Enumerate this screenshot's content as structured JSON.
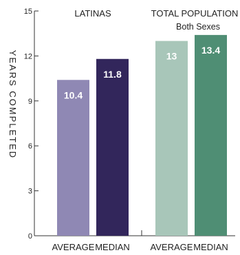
{
  "chart_data": {
    "type": "bar",
    "ylabel": "YEARS COMPLETED",
    "ylim": [
      0,
      15
    ],
    "yticks": [
      0,
      3,
      6,
      9,
      12,
      15
    ],
    "grid": false,
    "groups": [
      {
        "label": "LATINAS",
        "sublabel": "",
        "bars": [
          {
            "category": "AVERAGE",
            "value": 10.4,
            "value_label": "10.4",
            "color": "#8f88b4"
          },
          {
            "category": "MEDIAN",
            "value": 11.8,
            "value_label": "11.8",
            "color": "#32265b"
          }
        ]
      },
      {
        "label": "TOTAL POPULATION",
        "sublabel": "Both Sexes",
        "bars": [
          {
            "category": "AVERAGE",
            "value": 13,
            "value_label": "13",
            "color": "#a8c6b9"
          },
          {
            "category": "MEDIAN",
            "value": 13.4,
            "value_label": "13.4",
            "color": "#4f8e74"
          }
        ]
      }
    ]
  }
}
